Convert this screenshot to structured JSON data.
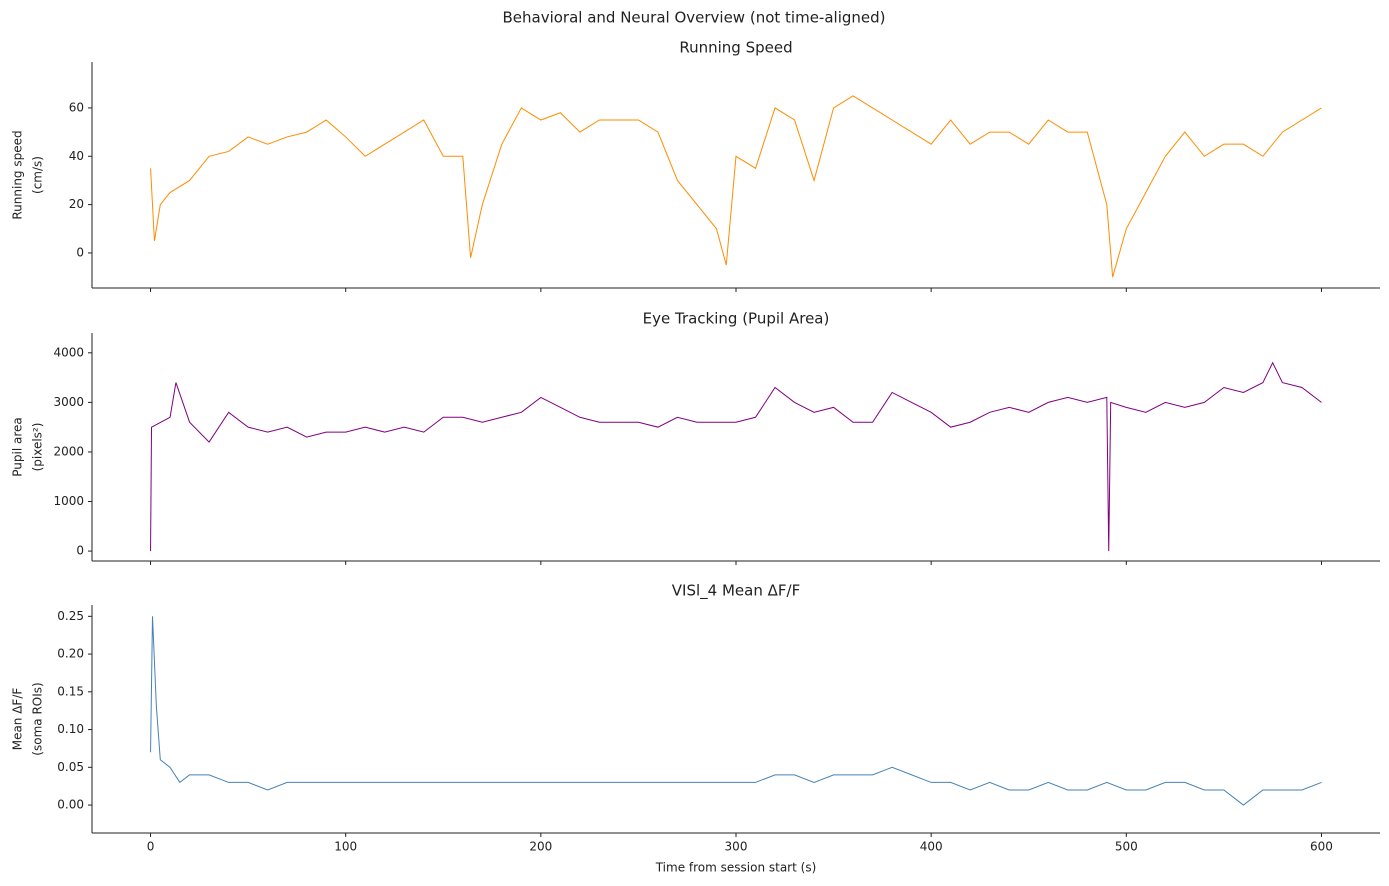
{
  "title": "Behavioral and Neural Overview (not time-aligned)",
  "chart_data": [
    {
      "type": "line",
      "title": "Running Speed",
      "ylabel": [
        "Running speed",
        "(cm/s)"
      ],
      "color": "#ff8c00",
      "xlim": [
        -30,
        630
      ],
      "xticks": [
        0,
        100,
        200,
        300,
        400,
        500,
        600
      ],
      "ylim": [
        -14.5,
        79
      ],
      "yticks": [
        0,
        20,
        40,
        60
      ],
      "x": [
        0,
        2,
        5,
        10,
        20,
        30,
        40,
        50,
        60,
        70,
        80,
        90,
        100,
        110,
        120,
        130,
        140,
        150,
        160,
        164,
        170,
        180,
        190,
        200,
        210,
        220,
        230,
        240,
        250,
        260,
        270,
        280,
        290,
        295,
        300,
        310,
        320,
        330,
        340,
        350,
        360,
        370,
        380,
        390,
        400,
        410,
        420,
        430,
        440,
        450,
        460,
        470,
        480,
        490,
        493,
        500,
        510,
        520,
        530,
        540,
        550,
        560,
        570,
        580,
        590,
        600
      ],
      "values": [
        35,
        5,
        20,
        25,
        30,
        40,
        42,
        48,
        45,
        48,
        50,
        55,
        48,
        40,
        45,
        50,
        55,
        40,
        40,
        -2,
        20,
        45,
        60,
        55,
        58,
        50,
        55,
        55,
        55,
        50,
        30,
        20,
        10,
        -5,
        40,
        35,
        60,
        55,
        30,
        60,
        65,
        60,
        55,
        50,
        45,
        55,
        45,
        50,
        50,
        45,
        55,
        50,
        50,
        20,
        -10,
        10,
        25,
        40,
        50,
        40,
        45,
        45,
        40,
        50,
        55,
        60
      ]
    },
    {
      "type": "line",
      "title": "Eye Tracking (Pupil Area)",
      "ylabel": [
        "Pupil area",
        "(pixels²)"
      ],
      "color": "#800080",
      "xlim": [
        -30,
        630
      ],
      "xticks": [
        0,
        100,
        200,
        300,
        400,
        500,
        600
      ],
      "ylim": [
        -200,
        4400
      ],
      "yticks": [
        0,
        1000,
        2000,
        3000,
        4000
      ],
      "x": [
        0,
        0.5,
        10,
        13,
        20,
        30,
        40,
        50,
        60,
        70,
        80,
        90,
        100,
        110,
        120,
        130,
        140,
        150,
        160,
        170,
        180,
        190,
        200,
        210,
        220,
        230,
        240,
        250,
        260,
        270,
        280,
        290,
        300,
        310,
        320,
        330,
        340,
        350,
        360,
        370,
        380,
        390,
        400,
        410,
        420,
        430,
        440,
        450,
        460,
        470,
        480,
        490,
        491,
        492,
        500,
        510,
        520,
        530,
        540,
        550,
        560,
        570,
        575,
        580,
        590,
        600
      ],
      "values": [
        0,
        2500,
        2700,
        3400,
        2600,
        2200,
        2800,
        2500,
        2400,
        2500,
        2300,
        2400,
        2400,
        2500,
        2400,
        2500,
        2400,
        2700,
        2700,
        2600,
        2700,
        2800,
        3100,
        2900,
        2700,
        2600,
        2600,
        2600,
        2500,
        2700,
        2600,
        2600,
        2600,
        2700,
        3300,
        3000,
        2800,
        2900,
        2600,
        2600,
        3200,
        3000,
        2800,
        2500,
        2600,
        2800,
        2900,
        2800,
        3000,
        3100,
        3000,
        3100,
        0,
        3000,
        2900,
        2800,
        3000,
        2900,
        3000,
        3300,
        3200,
        3400,
        3800,
        3400,
        3300,
        3000
      ]
    },
    {
      "type": "line",
      "title": "VISl_4 Mean ΔF/F",
      "ylabel": [
        "Mean ΔF/F",
        "(soma ROIs)"
      ],
      "xlabel": "Time from session start (s)",
      "color": "#4682b4",
      "xlim": [
        -30,
        630
      ],
      "xticks": [
        0,
        100,
        200,
        300,
        400,
        500,
        600
      ],
      "ylim": [
        -0.037,
        0.265
      ],
      "yticks": [
        {
          "value": 0,
          "label": "0.00"
        },
        0.05,
        {
          "value": 0.1,
          "label": "0.10"
        },
        0.15,
        {
          "value": 0.2,
          "label": "0.20"
        },
        0.25
      ],
      "x": [
        0,
        1,
        3,
        5,
        10,
        15,
        20,
        30,
        40,
        50,
        60,
        70,
        80,
        90,
        100,
        110,
        120,
        130,
        140,
        150,
        160,
        170,
        180,
        190,
        200,
        210,
        220,
        230,
        240,
        250,
        260,
        270,
        280,
        290,
        300,
        310,
        320,
        330,
        340,
        350,
        360,
        370,
        380,
        390,
        400,
        410,
        420,
        430,
        440,
        450,
        460,
        470,
        480,
        490,
        500,
        510,
        520,
        530,
        540,
        550,
        560,
        570,
        580,
        590,
        600
      ],
      "values": [
        0.07,
        0.25,
        0.13,
        0.06,
        0.05,
        0.03,
        0.04,
        0.04,
        0.03,
        0.03,
        0.02,
        0.03,
        0.03,
        0.03,
        0.03,
        0.03,
        0.03,
        0.03,
        0.03,
        0.03,
        0.03,
        0.03,
        0.03,
        0.03,
        0.03,
        0.03,
        0.03,
        0.03,
        0.03,
        0.03,
        0.03,
        0.03,
        0.03,
        0.03,
        0.03,
        0.03,
        0.04,
        0.04,
        0.03,
        0.04,
        0.04,
        0.04,
        0.05,
        0.04,
        0.03,
        0.03,
        0.02,
        0.03,
        0.02,
        0.02,
        0.03,
        0.02,
        0.02,
        0.03,
        0.02,
        0.02,
        0.03,
        0.03,
        0.02,
        0.02,
        0.0,
        0.02,
        0.02,
        0.02,
        0.03
      ]
    }
  ]
}
